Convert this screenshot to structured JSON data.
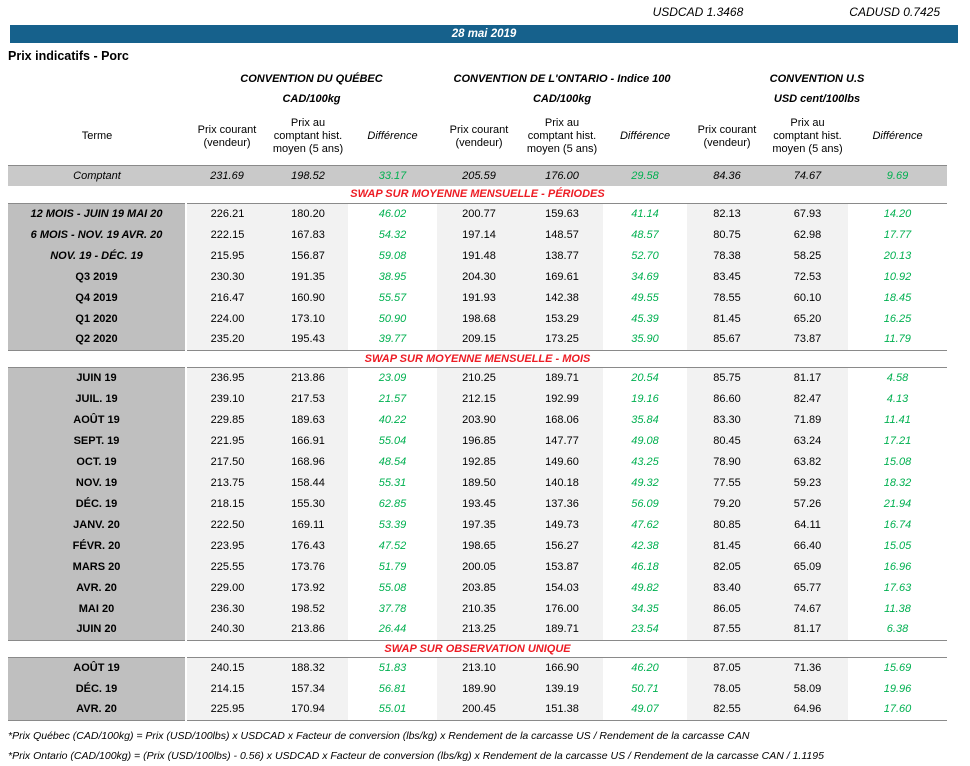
{
  "fx": {
    "usdcad": "USDCAD 1.3468",
    "cadusd": "CADUSD 0.7425"
  },
  "banner": {
    "date": "28 mai 2019"
  },
  "page_title": "Prix indicatifs - Porc",
  "table": {
    "groups": [
      {
        "title": "CONVENTION DU QUÉBEC",
        "unit": "CAD/100kg"
      },
      {
        "title": "CONVENTION DE L'ONTARIO - Indice 100",
        "unit": "CAD/100kg"
      },
      {
        "title": "CONVENTION U.S",
        "unit": "USD cent/100lbs"
      }
    ],
    "col_headers": {
      "term": "Terme",
      "current": "Prix courant\n(vendeur)",
      "hist": "Prix au\ncomptant hist.\nmoyen (5 ans)",
      "diff": "Différence"
    },
    "spot_row": {
      "term": "Comptant",
      "values": [
        "231.69",
        "198.52",
        "33.17",
        "205.59",
        "176.00",
        "29.58",
        "84.36",
        "74.67",
        "9.69"
      ]
    },
    "sections": [
      {
        "title": "SWAP SUR MOYENNE MENSUELLE - PÉRIODES",
        "rows": [
          {
            "term": "12 MOIS -  JUIN 19 MAI 20",
            "italic": true,
            "values": [
              "226.21",
              "180.20",
              "46.02",
              "200.77",
              "159.63",
              "41.14",
              "82.13",
              "67.93",
              "14.20"
            ]
          },
          {
            "term": "6 MOIS -  NOV. 19 AVR. 20",
            "italic": true,
            "values": [
              "222.15",
              "167.83",
              "54.32",
              "197.14",
              "148.57",
              "48.57",
              "80.75",
              "62.98",
              "17.77"
            ]
          },
          {
            "term": "NOV. 19 -  DÉC. 19",
            "italic": true,
            "values": [
              "215.95",
              "156.87",
              "59.08",
              "191.48",
              "138.77",
              "52.70",
              "78.38",
              "58.25",
              "20.13"
            ]
          },
          {
            "term": "Q3 2019",
            "italic": false,
            "values": [
              "230.30",
              "191.35",
              "38.95",
              "204.30",
              "169.61",
              "34.69",
              "83.45",
              "72.53",
              "10.92"
            ]
          },
          {
            "term": "Q4 2019",
            "italic": false,
            "values": [
              "216.47",
              "160.90",
              "55.57",
              "191.93",
              "142.38",
              "49.55",
              "78.55",
              "60.10",
              "18.45"
            ]
          },
          {
            "term": "Q1 2020",
            "italic": false,
            "values": [
              "224.00",
              "173.10",
              "50.90",
              "198.68",
              "153.29",
              "45.39",
              "81.45",
              "65.20",
              "16.25"
            ]
          },
          {
            "term": "Q2 2020",
            "italic": false,
            "values": [
              "235.20",
              "195.43",
              "39.77",
              "209.15",
              "173.25",
              "35.90",
              "85.67",
              "73.87",
              "11.79"
            ]
          }
        ]
      },
      {
        "title": "SWAP SUR MOYENNE MENSUELLE - MOIS",
        "rows": [
          {
            "term": "JUIN 19",
            "italic": false,
            "values": [
              "236.95",
              "213.86",
              "23.09",
              "210.25",
              "189.71",
              "20.54",
              "85.75",
              "81.17",
              "4.58"
            ]
          },
          {
            "term": "JUIL. 19",
            "italic": false,
            "values": [
              "239.10",
              "217.53",
              "21.57",
              "212.15",
              "192.99",
              "19.16",
              "86.60",
              "82.47",
              "4.13"
            ]
          },
          {
            "term": "AOÛT 19",
            "italic": false,
            "values": [
              "229.85",
              "189.63",
              "40.22",
              "203.90",
              "168.06",
              "35.84",
              "83.30",
              "71.89",
              "11.41"
            ]
          },
          {
            "term": "SEPT. 19",
            "italic": false,
            "values": [
              "221.95",
              "166.91",
              "55.04",
              "196.85",
              "147.77",
              "49.08",
              "80.45",
              "63.24",
              "17.21"
            ]
          },
          {
            "term": "OCT. 19",
            "italic": false,
            "values": [
              "217.50",
              "168.96",
              "48.54",
              "192.85",
              "149.60",
              "43.25",
              "78.90",
              "63.82",
              "15.08"
            ]
          },
          {
            "term": "NOV. 19",
            "italic": false,
            "values": [
              "213.75",
              "158.44",
              "55.31",
              "189.50",
              "140.18",
              "49.32",
              "77.55",
              "59.23",
              "18.32"
            ]
          },
          {
            "term": "DÉC. 19",
            "italic": false,
            "values": [
              "218.15",
              "155.30",
              "62.85",
              "193.45",
              "137.36",
              "56.09",
              "79.20",
              "57.26",
              "21.94"
            ]
          },
          {
            "term": "JANV. 20",
            "italic": false,
            "values": [
              "222.50",
              "169.11",
              "53.39",
              "197.35",
              "149.73",
              "47.62",
              "80.85",
              "64.11",
              "16.74"
            ]
          },
          {
            "term": "FÉVR. 20",
            "italic": false,
            "values": [
              "223.95",
              "176.43",
              "47.52",
              "198.65",
              "156.27",
              "42.38",
              "81.45",
              "66.40",
              "15.05"
            ]
          },
          {
            "term": "MARS 20",
            "italic": false,
            "values": [
              "225.55",
              "173.76",
              "51.79",
              "200.05",
              "153.87",
              "46.18",
              "82.05",
              "65.09",
              "16.96"
            ]
          },
          {
            "term": "AVR. 20",
            "italic": false,
            "values": [
              "229.00",
              "173.92",
              "55.08",
              "203.85",
              "154.03",
              "49.82",
              "83.40",
              "65.77",
              "17.63"
            ]
          },
          {
            "term": "MAI 20",
            "italic": false,
            "values": [
              "236.30",
              "198.52",
              "37.78",
              "210.35",
              "176.00",
              "34.35",
              "86.05",
              "74.67",
              "11.38"
            ]
          },
          {
            "term": "JUIN 20",
            "italic": false,
            "values": [
              "240.30",
              "213.86",
              "26.44",
              "213.25",
              "189.71",
              "23.54",
              "87.55",
              "81.17",
              "6.38"
            ]
          }
        ]
      },
      {
        "title": "SWAP SUR OBSERVATION UNIQUE",
        "rows": [
          {
            "term": "AOÛT 19",
            "italic": false,
            "values": [
              "240.15",
              "188.32",
              "51.83",
              "213.10",
              "166.90",
              "46.20",
              "87.05",
              "71.36",
              "15.69"
            ]
          },
          {
            "term": "DÉC. 19",
            "italic": false,
            "values": [
              "214.15",
              "157.34",
              "56.81",
              "189.90",
              "139.19",
              "50.71",
              "78.05",
              "58.09",
              "19.96"
            ]
          },
          {
            "term": "AVR. 20",
            "italic": false,
            "values": [
              "225.95",
              "170.94",
              "55.01",
              "200.45",
              "151.38",
              "49.07",
              "82.55",
              "64.96",
              "17.60"
            ]
          }
        ]
      }
    ]
  },
  "footnotes": [
    "*Prix Québec (CAD/100kg) = Prix (USD/100lbs) x USDCAD x Facteur de conversion (lbs/kg) x Rendement de la carcasse US / Rendement de la carcasse CAN",
    "*Prix Ontario (CAD/100kg) = (Prix (USD/100lbs) - 0.56) x USDCAD x Facteur de conversion (lbs/kg) x Rendement de la carcasse US / Rendement de la carcasse CAN / 1.1195"
  ],
  "colors": {
    "banner_bg": "#16618C",
    "section_header_red": "#ED1C24",
    "difference_green": "#00B050",
    "spot_row_bg": "#C9C9C9",
    "term_cell_bg": "#BFBFBF",
    "price_band_bg": "#F2F2F2"
  }
}
